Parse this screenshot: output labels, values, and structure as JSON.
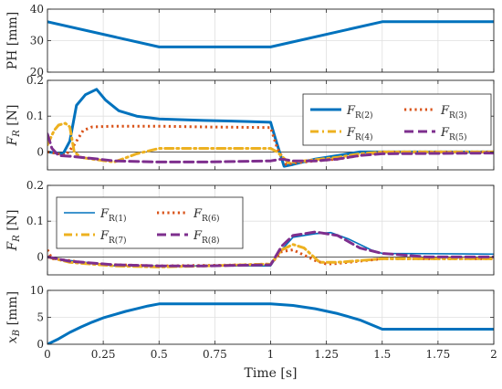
{
  "chart_data": [
    {
      "id": "ph",
      "type": "line",
      "ylabel": "PH [mm]",
      "xlim": [
        0,
        2
      ],
      "ylim": [
        20,
        40
      ],
      "yticks": [
        20,
        30,
        40
      ],
      "grid": true,
      "series": [
        {
          "color": "#0072BD",
          "style": "solid",
          "width": "thick",
          "points": [
            [
              0,
              36
            ],
            [
              0.5,
              28
            ],
            [
              1.0,
              28
            ],
            [
              1.5,
              36
            ],
            [
              2.0,
              36
            ]
          ]
        }
      ]
    },
    {
      "id": "fr_top",
      "type": "line",
      "ylabel": "F_R [N]",
      "xlim": [
        0,
        2
      ],
      "ylim": [
        -0.05,
        0.2
      ],
      "yticks": [
        0,
        0.1,
        0.2
      ],
      "grid": true,
      "zero_line": true,
      "legend": {
        "placement": "top-right",
        "columns": 2
      },
      "series": [
        {
          "name_main": "F",
          "name_sub": "R(2)",
          "color": "#0072BD",
          "style": "solid",
          "width": "thick",
          "points": [
            [
              0,
              0
            ],
            [
              0.07,
              -0.005
            ],
            [
              0.1,
              0.03
            ],
            [
              0.13,
              0.13
            ],
            [
              0.17,
              0.16
            ],
            [
              0.22,
              0.175
            ],
            [
              0.26,
              0.145
            ],
            [
              0.32,
              0.115
            ],
            [
              0.4,
              0.1
            ],
            [
              0.5,
              0.092
            ],
            [
              0.7,
              0.088
            ],
            [
              0.9,
              0.085
            ],
            [
              1.0,
              0.083
            ],
            [
              1.02,
              0.04
            ],
            [
              1.06,
              -0.04
            ],
            [
              1.1,
              -0.035
            ],
            [
              1.2,
              -0.02
            ],
            [
              1.3,
              -0.01
            ],
            [
              1.4,
              0
            ],
            [
              1.5,
              0
            ],
            [
              2.0,
              0
            ]
          ]
        },
        {
          "name_main": "F",
          "name_sub": "R(3)",
          "color": "#D95319",
          "style": "dotted",
          "width": "thick",
          "points": [
            [
              0,
              0
            ],
            [
              0.05,
              -0.005
            ],
            [
              0.08,
              -0.01
            ],
            [
              0.12,
              0.02
            ],
            [
              0.16,
              0.06
            ],
            [
              0.2,
              0.07
            ],
            [
              0.3,
              0.072
            ],
            [
              0.5,
              0.072
            ],
            [
              0.7,
              0.07
            ],
            [
              1.0,
              0.068
            ],
            [
              1.03,
              0.01
            ],
            [
              1.07,
              -0.035
            ],
            [
              1.12,
              -0.03
            ],
            [
              1.2,
              -0.025
            ],
            [
              1.3,
              -0.02
            ],
            [
              1.4,
              -0.01
            ],
            [
              1.5,
              0
            ],
            [
              2.0,
              0
            ]
          ]
        },
        {
          "name_main": "F",
          "name_sub": "R(4)",
          "color": "#EDB120",
          "style": "dashdot",
          "width": "thick",
          "points": [
            [
              0,
              0.02
            ],
            [
              0.03,
              0.06
            ],
            [
              0.05,
              0.075
            ],
            [
              0.08,
              0.08
            ],
            [
              0.1,
              0.07
            ],
            [
              0.12,
              0
            ],
            [
              0.15,
              -0.015
            ],
            [
              0.2,
              -0.02
            ],
            [
              0.3,
              -0.028
            ],
            [
              0.4,
              -0.005
            ],
            [
              0.5,
              0.01
            ],
            [
              0.7,
              0.01
            ],
            [
              1.0,
              0.01
            ],
            [
              1.03,
              0
            ],
            [
              1.08,
              -0.03
            ],
            [
              1.15,
              -0.025
            ],
            [
              1.3,
              -0.015
            ],
            [
              1.4,
              -0.005
            ],
            [
              1.5,
              0
            ],
            [
              2.0,
              0
            ]
          ]
        },
        {
          "name_main": "F",
          "name_sub": "R(5)",
          "color": "#7E2F8E",
          "style": "dashed",
          "width": "thick",
          "points": [
            [
              0,
              0.05
            ],
            [
              0.02,
              0.01
            ],
            [
              0.05,
              -0.01
            ],
            [
              0.1,
              -0.012
            ],
            [
              0.2,
              -0.018
            ],
            [
              0.3,
              -0.025
            ],
            [
              0.5,
              -0.028
            ],
            [
              0.7,
              -0.028
            ],
            [
              1.0,
              -0.025
            ],
            [
              1.05,
              -0.02
            ],
            [
              1.1,
              -0.025
            ],
            [
              1.2,
              -0.025
            ],
            [
              1.3,
              -0.02
            ],
            [
              1.4,
              -0.01
            ],
            [
              1.5,
              -0.005
            ],
            [
              2.0,
              -0.003
            ]
          ]
        }
      ]
    },
    {
      "id": "fr_bottom",
      "type": "line",
      "ylabel": "F_R [N]",
      "xlim": [
        0,
        2
      ],
      "ylim": [
        -0.05,
        0.2
      ],
      "yticks": [
        0,
        0.1,
        0.2
      ],
      "grid": true,
      "zero_line": true,
      "legend": {
        "placement": "top-left",
        "columns": 2
      },
      "series": [
        {
          "name_main": "F",
          "name_sub": "R(1)",
          "color": "#0072BD",
          "style": "solid",
          "width": "thin",
          "points": [
            [
              0,
              0
            ],
            [
              0.1,
              -0.01
            ],
            [
              0.3,
              -0.025
            ],
            [
              0.5,
              -0.025
            ],
            [
              0.7,
              -0.025
            ],
            [
              1.0,
              -0.025
            ],
            [
              1.05,
              0.02
            ],
            [
              1.1,
              0.055
            ],
            [
              1.2,
              0.065
            ],
            [
              1.27,
              0.068
            ],
            [
              1.35,
              0.05
            ],
            [
              1.45,
              0.02
            ],
            [
              1.5,
              0.01
            ],
            [
              2.0,
              0.008
            ]
          ]
        },
        {
          "name_main": "F",
          "name_sub": "R(6)",
          "color": "#D95319",
          "style": "dotted",
          "width": "thick",
          "points": [
            [
              0,
              0.02
            ],
            [
              0.02,
              -0.005
            ],
            [
              0.1,
              -0.01
            ],
            [
              0.2,
              -0.02
            ],
            [
              0.5,
              -0.025
            ],
            [
              0.8,
              -0.023
            ],
            [
              1.0,
              -0.02
            ],
            [
              1.05,
              0.015
            ],
            [
              1.1,
              0.02
            ],
            [
              1.2,
              -0.01
            ],
            [
              1.25,
              -0.02
            ],
            [
              1.3,
              -0.018
            ],
            [
              1.5,
              -0.005
            ],
            [
              2.0,
              -0.005
            ]
          ]
        },
        {
          "name_main": "F",
          "name_sub": "R(7)",
          "color": "#EDB120",
          "style": "dashdot",
          "width": "thick",
          "points": [
            [
              0,
              0
            ],
            [
              0.1,
              -0.015
            ],
            [
              0.3,
              -0.025
            ],
            [
              0.5,
              -0.028
            ],
            [
              0.7,
              -0.025
            ],
            [
              1.0,
              -0.02
            ],
            [
              1.05,
              0.02
            ],
            [
              1.1,
              0.035
            ],
            [
              1.15,
              0.025
            ],
            [
              1.22,
              -0.015
            ],
            [
              1.3,
              -0.015
            ],
            [
              1.5,
              -0.005
            ],
            [
              2.0,
              -0.005
            ]
          ]
        },
        {
          "name_main": "F",
          "name_sub": "R(8)",
          "color": "#7E2F8E",
          "style": "dashed",
          "width": "thick",
          "points": [
            [
              0,
              0
            ],
            [
              0.1,
              -0.012
            ],
            [
              0.3,
              -0.022
            ],
            [
              0.5,
              -0.025
            ],
            [
              0.7,
              -0.025
            ],
            [
              1.0,
              -0.022
            ],
            [
              1.05,
              0.03
            ],
            [
              1.1,
              0.06
            ],
            [
              1.2,
              0.07
            ],
            [
              1.3,
              0.06
            ],
            [
              1.4,
              0.025
            ],
            [
              1.5,
              0.01
            ],
            [
              1.7,
              0
            ],
            [
              2.0,
              0
            ]
          ]
        }
      ]
    },
    {
      "id": "xb",
      "type": "line",
      "ylabel": "x_B [mm]",
      "xlabel": "Time [s]",
      "xlim": [
        0,
        2
      ],
      "ylim": [
        0,
        10
      ],
      "yticks": [
        0,
        5,
        10
      ],
      "xticks": [
        0,
        0.25,
        0.5,
        0.75,
        1,
        1.25,
        1.5,
        1.75,
        2
      ],
      "xtick_labels": [
        "0",
        "0.25",
        "0.5",
        "0.75",
        "1",
        "1.25",
        "1.5",
        "1.75",
        "2"
      ],
      "grid": true,
      "series": [
        {
          "color": "#0072BD",
          "style": "solid",
          "width": "thick",
          "points": [
            [
              0,
              0
            ],
            [
              0.05,
              1
            ],
            [
              0.1,
              2.2
            ],
            [
              0.15,
              3.2
            ],
            [
              0.2,
              4.1
            ],
            [
              0.25,
              4.9
            ],
            [
              0.3,
              5.5
            ],
            [
              0.35,
              6.1
            ],
            [
              0.4,
              6.6
            ],
            [
              0.45,
              7.1
            ],
            [
              0.5,
              7.5
            ],
            [
              1.0,
              7.5
            ],
            [
              1.1,
              7.2
            ],
            [
              1.2,
              6.6
            ],
            [
              1.3,
              5.7
            ],
            [
              1.4,
              4.5
            ],
            [
              1.5,
              2.8
            ],
            [
              2.0,
              2.8
            ]
          ]
        }
      ]
    }
  ]
}
